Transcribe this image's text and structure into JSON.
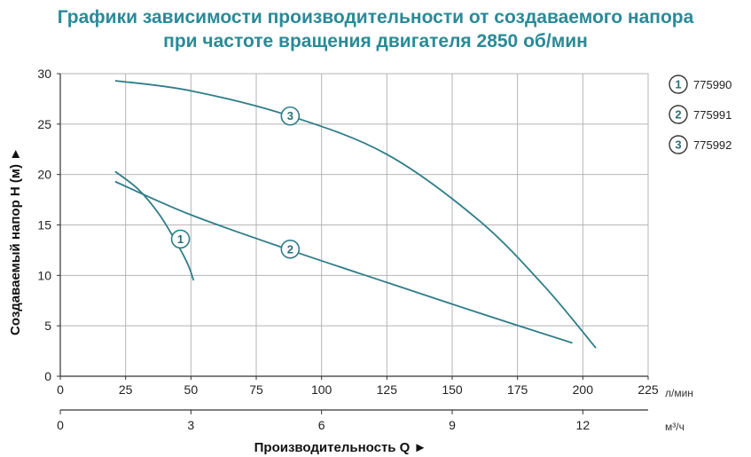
{
  "chart_data": {
    "type": "line",
    "title": "Графики зависимости производительности от создаваемого напора",
    "subtitle": "при частоте вращения двигателя 2850 об/мин",
    "xlabel": "Производительность Q ►",
    "ylabel": "Создаваемый напор H (м) ►",
    "x_unit_primary": "л/мин",
    "x_unit_secondary": "м³/ч",
    "xlim": [
      0,
      225
    ],
    "ylim": [
      0,
      30
    ],
    "x_ticks": [
      0,
      25,
      50,
      75,
      100,
      125,
      150,
      175,
      200,
      225
    ],
    "x_ticks_secondary": [
      0,
      3,
      6,
      9,
      12
    ],
    "y_ticks": [
      0,
      5,
      10,
      15,
      20,
      25,
      30
    ],
    "grid": true,
    "legend_position": "right",
    "series": [
      {
        "marker": "1",
        "name": "775990",
        "x": [
          21,
          30,
          38,
          45,
          49,
          51
        ],
        "y": [
          20.3,
          18.5,
          16.0,
          13.0,
          11.0,
          9.5
        ]
      },
      {
        "marker": "2",
        "name": "775991",
        "x": [
          21,
          50,
          88,
          125,
          160,
          196
        ],
        "y": [
          19.3,
          16.0,
          12.5,
          9.3,
          6.3,
          3.3
        ]
      },
      {
        "marker": "3",
        "name": "775992",
        "x": [
          21,
          50,
          88,
          125,
          160,
          185,
          205
        ],
        "y": [
          29.3,
          28.3,
          25.8,
          22.0,
          15.5,
          9.0,
          2.8
        ]
      }
    ],
    "colors": {
      "line": "#2f7d88",
      "grid": "#b5b5b5",
      "axis": "#333333",
      "title": "#2a8a97"
    }
  }
}
